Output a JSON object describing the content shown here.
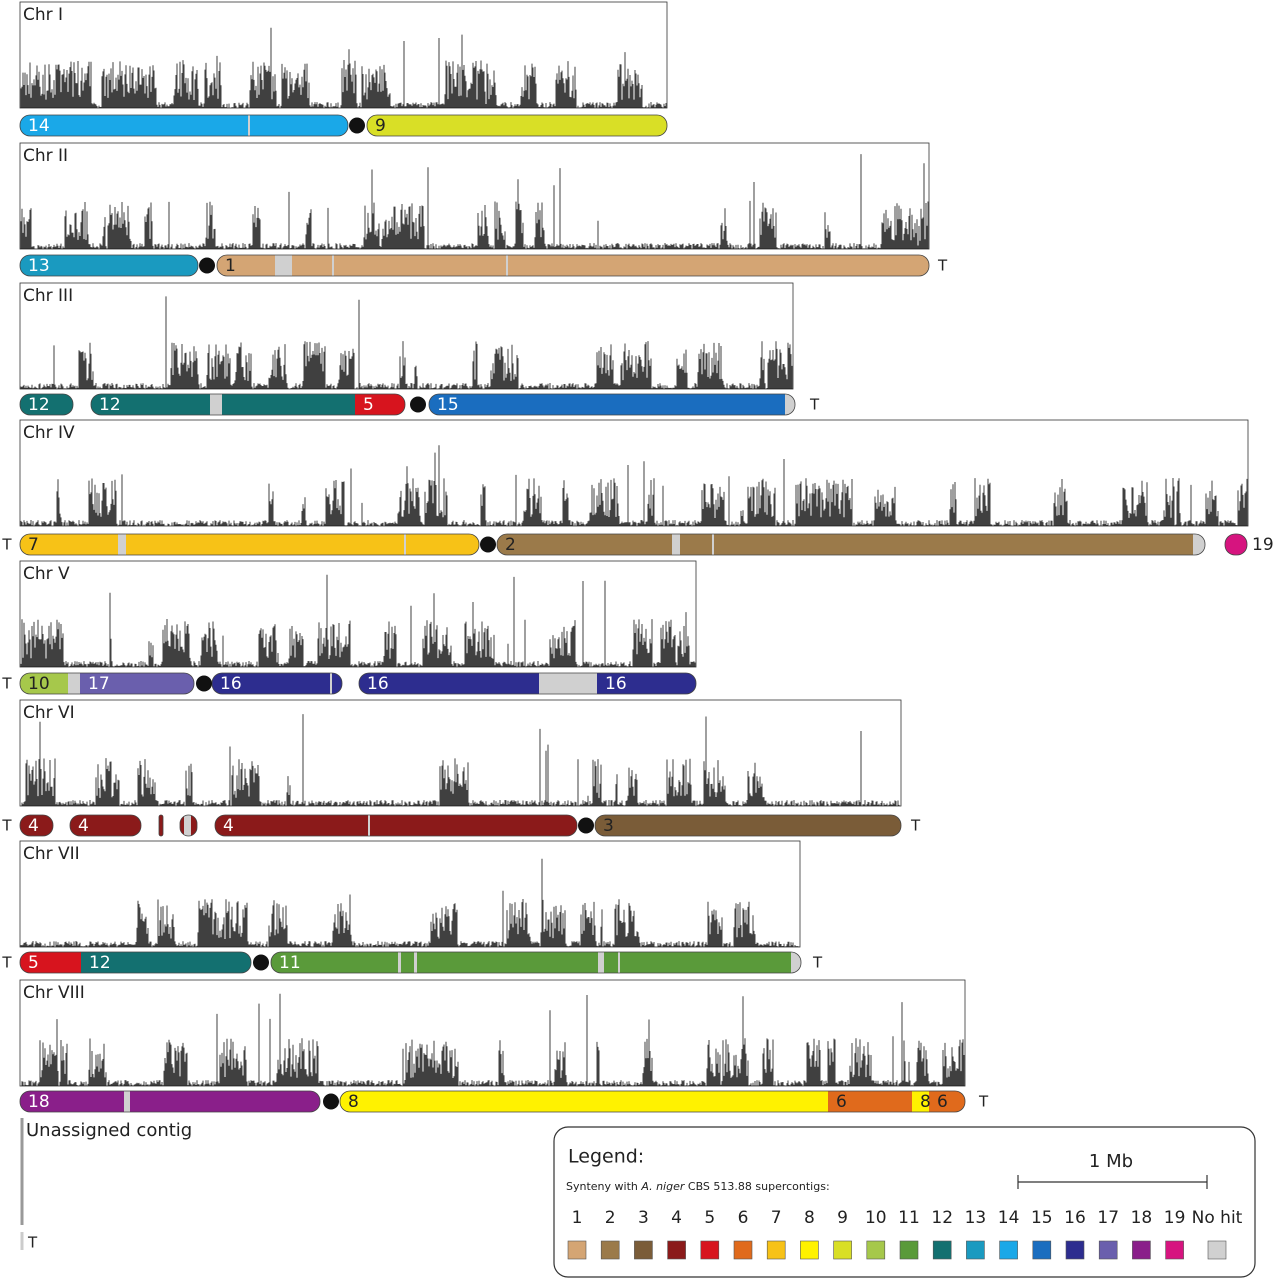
{
  "chromosomes": [
    {
      "name": "Chr I",
      "segments": [
        {
          "label": "14"
        },
        {
          "label": "9"
        }
      ]
    },
    {
      "name": "Chr II",
      "segments": [
        {
          "label": "13"
        },
        {
          "label": "1"
        }
      ]
    },
    {
      "name": "Chr III",
      "segments": [
        {
          "label": "12"
        },
        {
          "label": "12"
        },
        {
          "label": "5"
        },
        {
          "label": "15"
        }
      ]
    },
    {
      "name": "Chr IV",
      "segments": [
        {
          "label": "7"
        },
        {
          "label": "2"
        },
        {
          "label": "19"
        }
      ]
    },
    {
      "name": "Chr V",
      "segments": [
        {
          "label": "10"
        },
        {
          "label": "17"
        },
        {
          "label": "16"
        },
        {
          "label": "16"
        },
        {
          "label": "16"
        }
      ]
    },
    {
      "name": "Chr VI",
      "segments": [
        {
          "label": "4"
        },
        {
          "label": "4"
        },
        {
          "label": "4"
        },
        {
          "label": "3"
        }
      ]
    },
    {
      "name": "Chr VII",
      "segments": [
        {
          "label": "5"
        },
        {
          "label": "12"
        },
        {
          "label": "11"
        }
      ]
    },
    {
      "name": "Chr VIII",
      "segments": [
        {
          "label": "18"
        },
        {
          "label": "8"
        },
        {
          "label": "6"
        },
        {
          "label": "8"
        },
        {
          "label": "6"
        }
      ]
    }
  ],
  "telomere": "T",
  "unassigned": "Unassigned contig",
  "legend": {
    "title": "Legend:",
    "subtitle_pre": "Synteny with ",
    "species": "A. niger",
    "subtitle_post": " CBS 513.88 supercontigs:",
    "scale": "1 Mb",
    "items": [
      {
        "label": "1",
        "color": "#d4a574"
      },
      {
        "label": "2",
        "color": "#9b7a4a"
      },
      {
        "label": "3",
        "color": "#7a5c38"
      },
      {
        "label": "4",
        "color": "#8b1a1a"
      },
      {
        "label": "5",
        "color": "#d7141e"
      },
      {
        "label": "6",
        "color": "#e06a1c"
      },
      {
        "label": "7",
        "color": "#f7c217"
      },
      {
        "label": "8",
        "color": "#fff200"
      },
      {
        "label": "9",
        "color": "#d9df26"
      },
      {
        "label": "10",
        "color": "#a6c84b"
      },
      {
        "label": "11",
        "color": "#5a9a3a"
      },
      {
        "label": "12",
        "color": "#137070"
      },
      {
        "label": "13",
        "color": "#1a9ac0"
      },
      {
        "label": "14",
        "color": "#1aa8e8"
      },
      {
        "label": "15",
        "color": "#1a6dbf"
      },
      {
        "label": "16",
        "color": "#2d2d8f"
      },
      {
        "label": "17",
        "color": "#6a5fad"
      },
      {
        "label": "18",
        "color": "#8a1f8a"
      },
      {
        "label": "19",
        "color": "#d6147f"
      },
      {
        "label": "No hit",
        "color": "#d0d0d0"
      }
    ]
  }
}
